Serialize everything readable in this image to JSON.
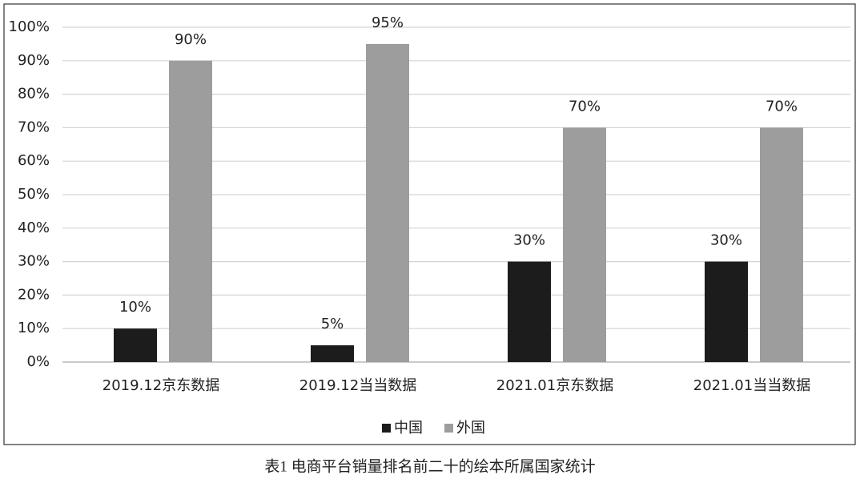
{
  "chart_data": {
    "type": "bar",
    "caption": "表1 电商平台销量排名前二十的绘本所属国家统计",
    "categories": [
      "2019.12京东数据",
      "2019.12当当数据",
      "2021.01京东数据",
      "2021.01当当数据"
    ],
    "series": [
      {
        "name": "中国",
        "color": "#1c1c1c",
        "values": [
          10,
          5,
          30,
          30
        ],
        "value_labels": [
          "10%",
          "5%",
          "30%",
          "30%"
        ]
      },
      {
        "name": "外国",
        "color": "#9d9d9d",
        "values": [
          90,
          95,
          70,
          70
        ],
        "value_labels": [
          "90%",
          "95%",
          "70%",
          "70%"
        ]
      }
    ],
    "ylim": [
      0,
      100
    ],
    "yticks": [
      {
        "value": 0,
        "label": "0%"
      },
      {
        "value": 10,
        "label": "10%"
      },
      {
        "value": 20,
        "label": "20%"
      },
      {
        "value": 30,
        "label": "30%"
      },
      {
        "value": 40,
        "label": "40%"
      },
      {
        "value": 50,
        "label": "50%"
      },
      {
        "value": 60,
        "label": "60%"
      },
      {
        "value": 70,
        "label": "70%"
      },
      {
        "value": 80,
        "label": "80%"
      },
      {
        "value": 90,
        "label": "90%"
      },
      {
        "value": 100,
        "label": "100%"
      }
    ],
    "grid": true,
    "legend": "bottom"
  }
}
